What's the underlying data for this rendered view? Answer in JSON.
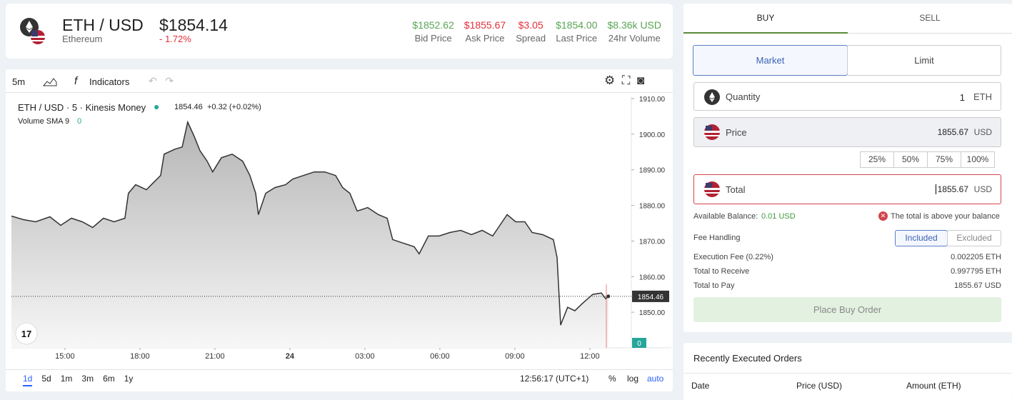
{
  "header": {
    "pair": "ETH / USD",
    "name": "Ethereum",
    "price": "$1854.14",
    "change": "- 1.72%",
    "stats": [
      {
        "value": "$1852.62",
        "label": "Bid Price"
      },
      {
        "value": "$1855.67",
        "label": "Ask Price"
      },
      {
        "value": "$3.05",
        "label": "Spread"
      },
      {
        "value": "$1854.00",
        "label": "Last Price"
      },
      {
        "value": "$8.36k USD",
        "label": "24hr Volume"
      }
    ]
  },
  "toolbar": {
    "interval": "5m",
    "indicators": "Indicators"
  },
  "legend": {
    "symbol": "ETH / USD · 5 · Kinesis Money",
    "change": "+0.32 (+0.02%)",
    "volume": "Volume SMA 9",
    "volume_value": "0"
  },
  "chart_data": {
    "type": "line",
    "color": "#333333",
    "last_price": 1854.46,
    "x": [
      12.86,
      13.34,
      13.83,
      14.4,
      14.83,
      15.26,
      15.69,
      16.11,
      16.54,
      16.97,
      17.4,
      17.54,
      17.83,
      18.26,
      18.54,
      18.83,
      18.97,
      19.4,
      19.69,
      19.91,
      20.17,
      20.4,
      20.69,
      20.91,
      21.26,
      21.69,
      22.11,
      22.4,
      22.63,
      22.74,
      23.03,
      23.4,
      23.83,
      24.11,
      24.54,
      24.97,
      25.4,
      25.83,
      26.11,
      26.4,
      26.69,
      27.11,
      27.54,
      27.89,
      28.11,
      28.54,
      28.97,
      29.17,
      29.54,
      29.97,
      30.4,
      30.83,
      31.26,
      31.69,
      32.11,
      32.4,
      32.69,
      33.03,
      33.4,
      33.69,
      34.11,
      34.54,
      34.69,
      34.83,
      35.11,
      35.4,
      35.69,
      36.11,
      36.46,
      36.63,
      36.74
    ],
    "values": [
      1877,
      1876,
      1875.4,
      1876.8,
      1874.4,
      1876.4,
      1875.4,
      1873.8,
      1876.4,
      1875.4,
      1876.4,
      1883.4,
      1885.8,
      1884.4,
      1886.4,
      1888.4,
      1894.4,
      1895.8,
      1896.4,
      1903.4,
      1899.4,
      1895.4,
      1892.4,
      1889.4,
      1893.4,
      1894.4,
      1892.4,
      1888.4,
      1883.4,
      1877.4,
      1883.4,
      1885,
      1885.8,
      1887.4,
      1888.4,
      1889.4,
      1889.4,
      1888.4,
      1885,
      1883.4,
      1878.4,
      1879.4,
      1877.4,
      1876.4,
      1870.4,
      1869.4,
      1868.4,
      1866.4,
      1871.4,
      1871.4,
      1872.4,
      1873,
      1871.8,
      1873,
      1871.4,
      1874.4,
      1877.4,
      1875.4,
      1875.4,
      1872.4,
      1871.8,
      1870.4,
      1865.4,
      1846.4,
      1851.4,
      1850.4,
      1852.4,
      1855,
      1855.4,
      1853.8,
      1854.46
    ],
    "xlim": [
      12.86,
      37.66
    ],
    "ylim": [
      1840,
      1910.6
    ],
    "yticks": [
      {
        "value": 1850,
        "label": "1850.00"
      },
      {
        "value": 1860,
        "label": "1860.00"
      },
      {
        "value": 1870,
        "label": "1870.00"
      },
      {
        "value": 1880,
        "label": "1880.00"
      },
      {
        "value": 1890,
        "label": "1890.00"
      },
      {
        "value": 1900,
        "label": "1900.00"
      },
      {
        "value": 1910,
        "label": "1910.00"
      }
    ],
    "xticks": [
      {
        "value": 15,
        "label": "15:00"
      },
      {
        "value": 18,
        "label": "18:00"
      },
      {
        "value": 21,
        "label": "21:00"
      },
      24,
      {
        "value": 27,
        "label": "03:00"
      },
      {
        "value": 30,
        "label": "06:00"
      },
      {
        "value": 33,
        "label": "09:00"
      },
      {
        "value": 36,
        "label": "12:00"
      }
    ]
  },
  "bottom_bar": {
    "ranges": [
      "1d",
      "5d",
      "1m",
      "3m",
      "6m",
      "1y"
    ],
    "time": "12:56:17 (UTC+1)",
    "percent": "%",
    "log": "log",
    "auto": "auto"
  },
  "order_form": {
    "tabs": [
      "BUY",
      "SELL"
    ],
    "modes": [
      "Market",
      "Limit"
    ],
    "quantity": {
      "label": "Quantity",
      "value": "1",
      "unit": "ETH"
    },
    "price": {
      "label": "Price",
      "value": "1855.67",
      "unit": "USD"
    },
    "percents": [
      "25%",
      "50%",
      "75%",
      "100%"
    ],
    "total": {
      "label": "Total",
      "value": "1855.67",
      "unit": "USD"
    },
    "balance_label": "Available Balance:",
    "balance_value": "0.01 USD",
    "error": "The total is above your balance",
    "fee_label": "Fee Handling",
    "fee_options": [
      "Included",
      "Excluded"
    ],
    "rows": [
      {
        "label": "Execution Fee (0.22%)",
        "value": "0.002205 ETH"
      },
      {
        "label": "Total to Receive",
        "value": "0.997795 ETH"
      },
      {
        "label": "Total to Pay",
        "value": "1855.67 USD"
      }
    ],
    "button": "Place Buy Order"
  },
  "recent_orders": {
    "title": "Recently Executed Orders",
    "columns": [
      "Date",
      "Price (USD)",
      "Amount (ETH)"
    ]
  }
}
